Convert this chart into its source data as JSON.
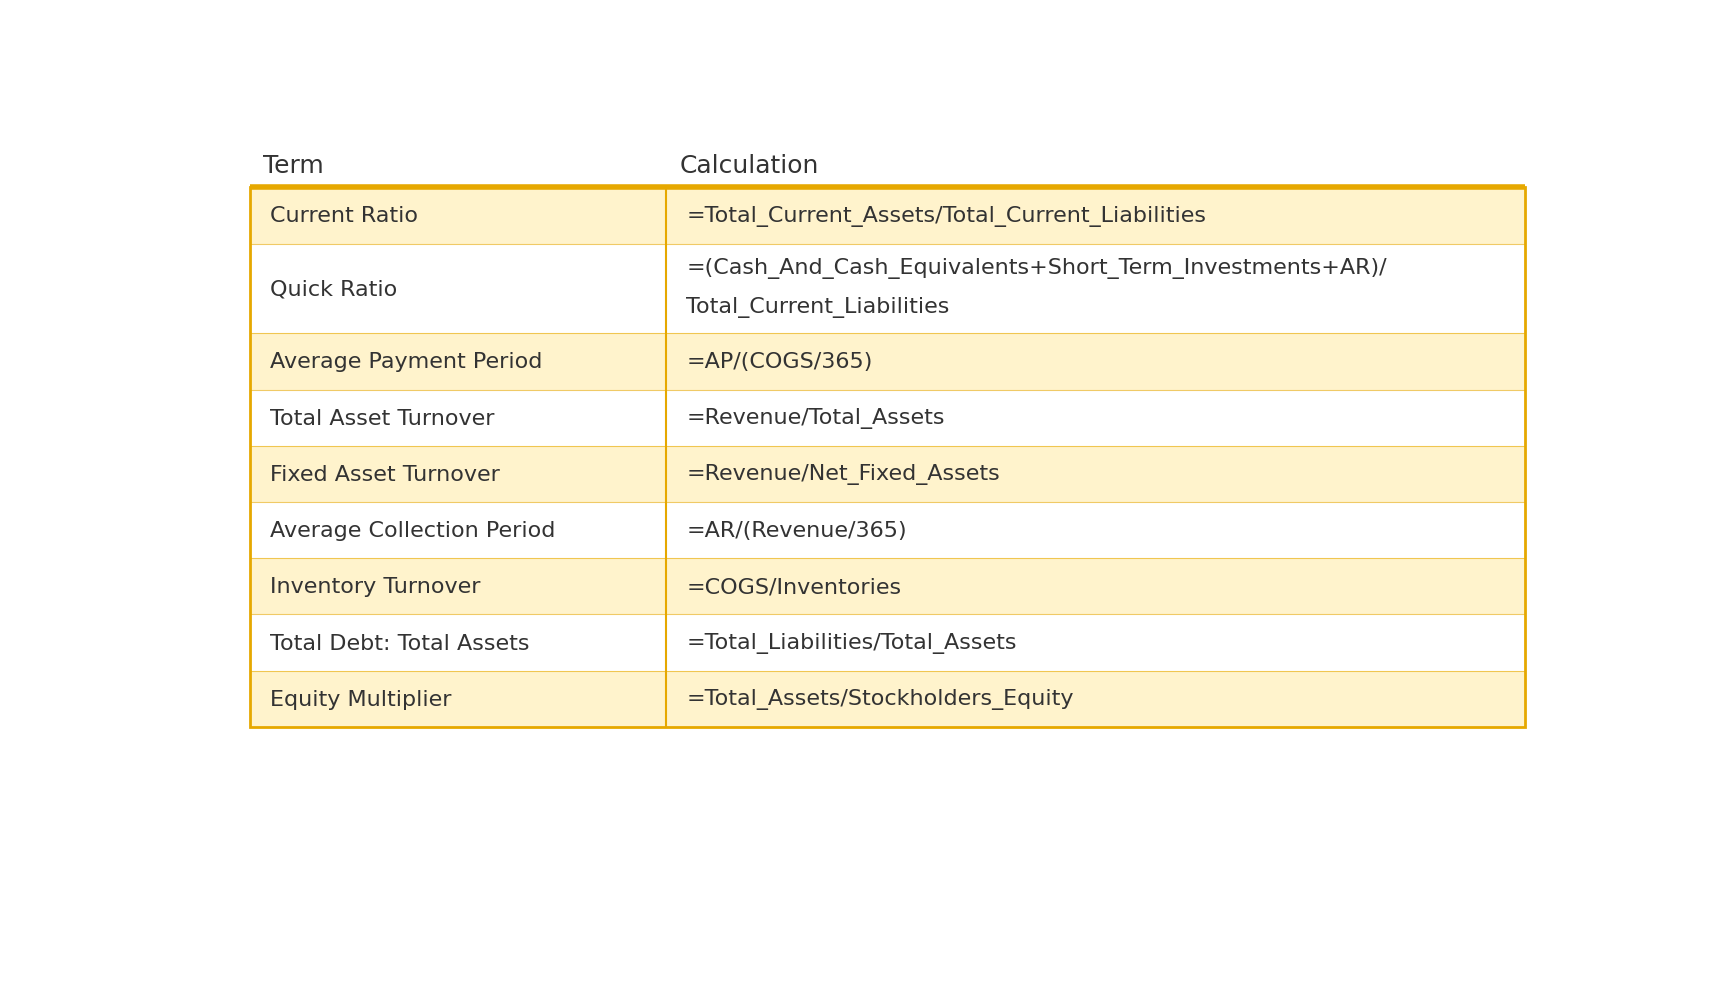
{
  "title_term": "Term",
  "title_calc": "Calculation",
  "header_font_size": 18,
  "body_font_size": 16,
  "background_color": "#ffffff",
  "row_bg_odd": "#FFF3CC",
  "row_bg_even": "#ffffff",
  "border_color": "#E6A800",
  "text_color": "#333333",
  "rows": [
    {
      "term": "Current Ratio",
      "calc": [
        "=Total_Current_Assets/Total_Current_Liabilities"
      ],
      "shaded": true
    },
    {
      "term": "Quick Ratio",
      "calc": [
        "=(Cash_And_Cash_Equivalents+Short_Term_Investments+AR)/",
        "Total_Current_Liabilities"
      ],
      "shaded": false
    },
    {
      "term": "Average Payment Period",
      "calc": [
        "=AP/(COGS/365)"
      ],
      "shaded": true
    },
    {
      "term": "Total Asset Turnover",
      "calc": [
        "=Revenue/Total_Assets"
      ],
      "shaded": false
    },
    {
      "term": "Fixed Asset Turnover",
      "calc": [
        "=Revenue/Net_Fixed_Assets"
      ],
      "shaded": true
    },
    {
      "term": "Average Collection Period",
      "calc": [
        "=AR/(Revenue/365)"
      ],
      "shaded": false
    },
    {
      "term": "Inventory Turnover",
      "calc": [
        "=COGS/Inventories"
      ],
      "shaded": true
    },
    {
      "term": "Total Debt: Total Assets",
      "calc": [
        "=Total_Liabilities/Total_Assets"
      ],
      "shaded": false
    },
    {
      "term": "Equity Multiplier",
      "calc": [
        "=Total_Assets/Stockholders_Equity"
      ],
      "shaded": true
    }
  ]
}
